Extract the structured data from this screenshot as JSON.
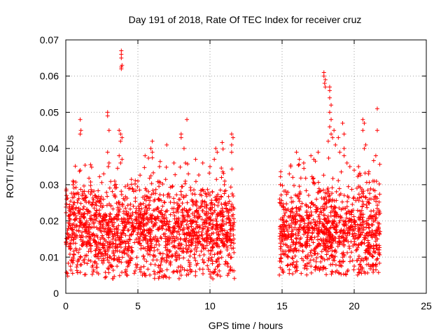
{
  "chart_data": {
    "type": "scatter",
    "title": "Day 191 of 2018, Rate Of TEC Index for receiver cruz",
    "xlabel": "GPS time / hours",
    "ylabel": "ROTI / TECUs",
    "xlim": [
      0,
      25
    ],
    "ylim": [
      0,
      0.07
    ],
    "xticks": [
      0,
      5,
      10,
      15,
      20,
      25
    ],
    "xtick_labels": [
      "0",
      "5",
      "10",
      "15",
      "20",
      "25"
    ],
    "yticks": [
      0,
      0.01,
      0.02,
      0.03,
      0.04,
      0.05,
      0.06,
      0.07
    ],
    "ytick_labels": [
      "0",
      "0.01",
      "0.02",
      "0.03",
      "0.04",
      "0.05",
      "0.06",
      "0.07"
    ],
    "grid": true,
    "marker": "plus",
    "color": "#ff0000",
    "series": [
      {
        "name": "cruz",
        "segments": [
          {
            "x_range": [
              0.0,
              11.7
            ],
            "y_typical": [
              0.01,
              0.025
            ],
            "y_min": 0.004
          },
          {
            "x_range": [
              14.8,
              21.8
            ],
            "y_typical": [
              0.01,
              0.025
            ],
            "y_min": 0.005
          }
        ],
        "points": [
          [
            0.5,
            0.031
          ],
          [
            0.5,
            0.03
          ],
          [
            1.0,
            0.048
          ],
          [
            1.05,
            0.045
          ],
          [
            1.0,
            0.044
          ],
          [
            1.0,
            0.034
          ],
          [
            1.2,
            0.026
          ],
          [
            1.8,
            0.028
          ],
          [
            2.0,
            0.027
          ],
          [
            2.9,
            0.05
          ],
          [
            2.9,
            0.049
          ],
          [
            3.0,
            0.045
          ],
          [
            2.9,
            0.039
          ],
          [
            3.0,
            0.036
          ],
          [
            2.95,
            0.035
          ],
          [
            3.7,
            0.045
          ],
          [
            3.8,
            0.044
          ],
          [
            3.9,
            0.043
          ],
          [
            3.8,
            0.042
          ],
          [
            3.7,
            0.038
          ],
          [
            3.9,
            0.037
          ],
          [
            3.8,
            0.036
          ],
          [
            3.85,
            0.067
          ],
          [
            3.85,
            0.066
          ],
          [
            3.85,
            0.065
          ],
          [
            3.9,
            0.063
          ],
          [
            3.85,
            0.0625
          ],
          [
            3.85,
            0.062
          ],
          [
            5.0,
            0.031
          ],
          [
            5.5,
            0.038
          ],
          [
            5.9,
            0.04
          ],
          [
            6.0,
            0.042
          ],
          [
            6.0,
            0.039
          ],
          [
            6.5,
            0.035
          ],
          [
            7.0,
            0.041
          ],
          [
            7.5,
            0.036
          ],
          [
            8.0,
            0.043
          ],
          [
            8.0,
            0.044
          ],
          [
            8.2,
            0.04
          ],
          [
            8.3,
            0.036
          ],
          [
            8.4,
            0.048
          ],
          [
            8.5,
            0.033
          ],
          [
            9.0,
            0.037
          ],
          [
            9.5,
            0.036
          ],
          [
            10.0,
            0.035
          ],
          [
            10.3,
            0.037
          ],
          [
            10.4,
            0.04
          ],
          [
            10.5,
            0.039
          ],
          [
            10.8,
            0.032
          ],
          [
            11.0,
            0.03
          ],
          [
            11.5,
            0.044
          ],
          [
            11.6,
            0.043
          ],
          [
            11.5,
            0.041
          ],
          [
            11.5,
            0.039
          ],
          [
            2.5,
            0.009
          ],
          [
            3.0,
            0.0085
          ],
          [
            6.5,
            0.006
          ],
          [
            7.5,
            0.006
          ],
          [
            8.0,
            0.005
          ],
          [
            9.0,
            0.006
          ],
          [
            10.2,
            0.004
          ],
          [
            10.5,
            0.005
          ],
          [
            10.0,
            0.006
          ],
          [
            15.5,
            0.033
          ],
          [
            15.6,
            0.035
          ],
          [
            16.0,
            0.039
          ],
          [
            16.2,
            0.037
          ],
          [
            16.5,
            0.036
          ],
          [
            17.0,
            0.038
          ],
          [
            17.2,
            0.037
          ],
          [
            17.5,
            0.039
          ],
          [
            17.9,
            0.061
          ],
          [
            17.9,
            0.06
          ],
          [
            18.0,
            0.059
          ],
          [
            17.95,
            0.058
          ],
          [
            18.0,
            0.057
          ],
          [
            18.3,
            0.057
          ],
          [
            18.3,
            0.056
          ],
          [
            18.3,
            0.054
          ],
          [
            18.4,
            0.052
          ],
          [
            18.3,
            0.05
          ],
          [
            18.4,
            0.048
          ],
          [
            18.3,
            0.046
          ],
          [
            18.4,
            0.044
          ],
          [
            18.5,
            0.043
          ],
          [
            18.2,
            0.042
          ],
          [
            18.6,
            0.045
          ],
          [
            18.7,
            0.041
          ],
          [
            18.9,
            0.043
          ],
          [
            19.0,
            0.039
          ],
          [
            19.3,
            0.04
          ],
          [
            19.3,
            0.044
          ],
          [
            19.2,
            0.047
          ],
          [
            19.3,
            0.038
          ],
          [
            19.5,
            0.036
          ],
          [
            19.7,
            0.035
          ],
          [
            20.0,
            0.034
          ],
          [
            20.3,
            0.035
          ],
          [
            20.6,
            0.048
          ],
          [
            20.7,
            0.047
          ],
          [
            20.6,
            0.045
          ],
          [
            20.8,
            0.041
          ],
          [
            20.7,
            0.04
          ],
          [
            21.0,
            0.033
          ],
          [
            21.3,
            0.031
          ],
          [
            21.6,
            0.051
          ],
          [
            21.6,
            0.045
          ],
          [
            21.5,
            0.038
          ],
          [
            15.5,
            0.0065
          ],
          [
            16.0,
            0.007
          ],
          [
            17.0,
            0.0075
          ],
          [
            18.5,
            0.008
          ],
          [
            20.5,
            0.0055
          ],
          [
            21.0,
            0.008
          ]
        ]
      }
    ]
  }
}
